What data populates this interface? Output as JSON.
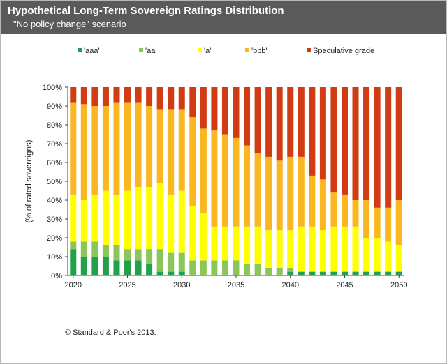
{
  "header": {
    "title": "Hypothetical Long-Term Sovereign Ratings Distribution",
    "subtitle": "\"No policy change\" scenario"
  },
  "footer": {
    "copyright": "© Standard & Poor's 2013."
  },
  "colors": {
    "aaa": "#22a04b",
    "aa": "#8ac65a",
    "a": "#ffff00",
    "bbb": "#fbb721",
    "spec": "#d13c14",
    "header_bg": "#5a5a5a"
  },
  "chart_data": {
    "type": "bar",
    "stacked": true,
    "percent_stacked": true,
    "title": "Hypothetical Long-Term Sovereign Ratings Distribution",
    "subtitle": "\"No policy change\" scenario",
    "xlabel": "",
    "ylabel": "(% of rated sovereigns)",
    "ylim": [
      0,
      100
    ],
    "yticks": [
      "0%",
      "10%",
      "20%",
      "30%",
      "40%",
      "50%",
      "60%",
      "70%",
      "80%",
      "90%",
      "100%"
    ],
    "x_tick_labels": [
      "2020",
      "2025",
      "2030",
      "2035",
      "2040",
      "2045",
      "2050"
    ],
    "legend_position": "top",
    "grid": false,
    "categories": [
      2020,
      2021,
      2022,
      2023,
      2024,
      2025,
      2026,
      2027,
      2028,
      2029,
      2030,
      2031,
      2032,
      2033,
      2034,
      2035,
      2036,
      2037,
      2038,
      2039,
      2040,
      2041,
      2042,
      2043,
      2044,
      2045,
      2046,
      2047,
      2048,
      2049,
      2050
    ],
    "series": [
      {
        "name": "'aaa'",
        "color": "#22a04b",
        "values": [
          14,
          10,
          10,
          10,
          8,
          8,
          8,
          6,
          2,
          2,
          2,
          0,
          0,
          0,
          0,
          0,
          0,
          0,
          0,
          0,
          2,
          2,
          2,
          2,
          2,
          2,
          2,
          2,
          2,
          2,
          2
        ]
      },
      {
        "name": "'aa'",
        "color": "#8ac65a",
        "values": [
          4,
          8,
          8,
          6,
          8,
          6,
          6,
          8,
          12,
          10,
          10,
          8,
          8,
          8,
          8,
          8,
          6,
          6,
          4,
          4,
          2,
          0,
          0,
          0,
          0,
          0,
          0,
          0,
          0,
          0,
          0
        ]
      },
      {
        "name": "'a'",
        "color": "#ffff00",
        "values": [
          25,
          22,
          25,
          29,
          27,
          31,
          33,
          33,
          35,
          31,
          33,
          29,
          25,
          18,
          18,
          18,
          20,
          20,
          20,
          20,
          20,
          24,
          24,
          22,
          24,
          24,
          24,
          18,
          18,
          16,
          14
        ]
      },
      {
        "name": "'bbb'",
        "color": "#fbb721",
        "values": [
          49,
          51,
          47,
          45,
          49,
          47,
          45,
          43,
          39,
          45,
          43,
          47,
          45,
          51,
          49,
          47,
          43,
          39,
          39,
          37,
          39,
          37,
          27,
          27,
          18,
          17,
          14,
          20,
          16,
          18,
          24
        ]
      },
      {
        "name": "Speculative grade",
        "color": "#d13c14",
        "values": [
          8,
          9,
          10,
          10,
          8,
          8,
          8,
          10,
          12,
          12,
          12,
          16,
          22,
          23,
          25,
          27,
          31,
          35,
          37,
          39,
          37,
          37,
          47,
          49,
          56,
          57,
          60,
          60,
          64,
          64,
          60
        ]
      }
    ]
  }
}
